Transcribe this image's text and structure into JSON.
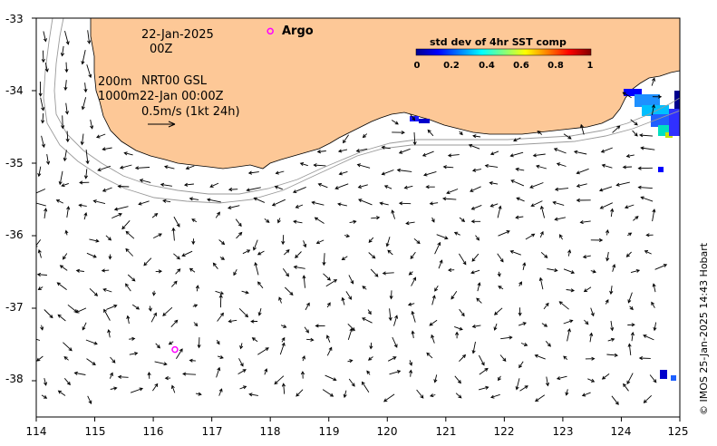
{
  "map": {
    "lon_range": [
      114,
      125
    ],
    "lat_range": [
      -38.5,
      -33
    ],
    "x_ticks": [
      "114",
      "115",
      "116",
      "117",
      "118",
      "119",
      "120",
      "121",
      "122",
      "123",
      "124",
      "125"
    ],
    "y_ticks": [
      "-33",
      "-34",
      "-35",
      "-36",
      "-37",
      "-38"
    ],
    "land_color": "#fdc897",
    "background": "#ffffff"
  },
  "annotations": {
    "date": "22-Jan-2025",
    "hour": "00Z",
    "depth1": "200m",
    "depth2": "1000m",
    "product": "NRT00 GSL",
    "product_time": "22-Jan 00:00Z",
    "scale_label": "0.5m/s (1kt 24h)"
  },
  "argo": {
    "label": "Argo",
    "color": "#ff00ff",
    "floats": [
      {
        "lon": 118.0,
        "lat": -33.18
      },
      {
        "lon": 116.37,
        "lat": -37.57
      }
    ]
  },
  "colorbar": {
    "title": "std dev of 4hr SST comp",
    "ticks": [
      "0",
      "0.2",
      "0.4",
      "0.6",
      "0.8",
      "1"
    ],
    "colormap": "jet"
  },
  "credit": "© IMOS 25-Jan-2025 14:43 Hobart"
}
